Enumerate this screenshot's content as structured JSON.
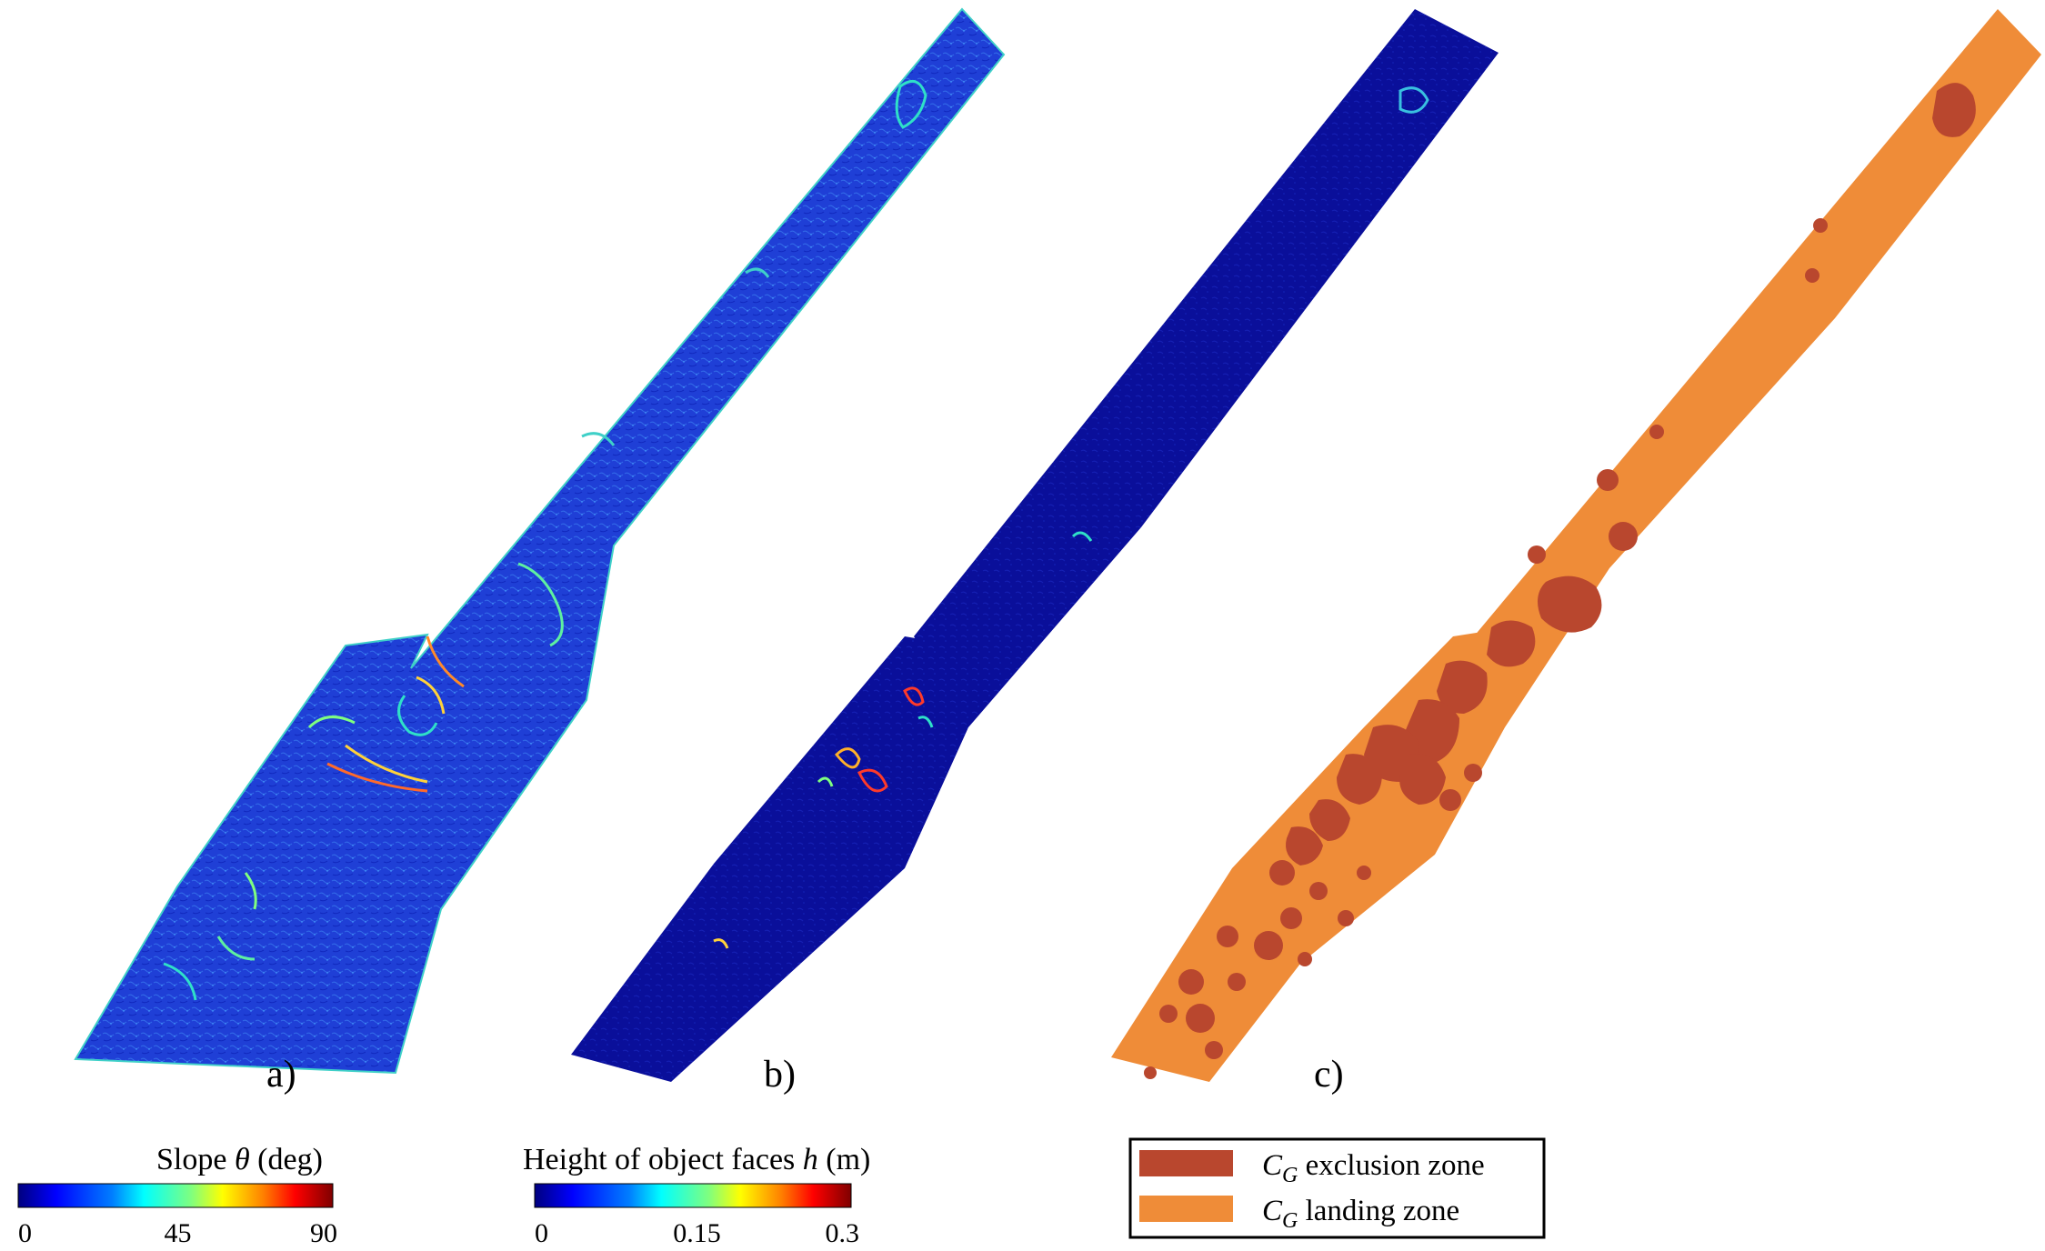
{
  "panels": [
    {
      "id": "a",
      "label": "a)",
      "fill": "#1f3fd6"
    },
    {
      "id": "b",
      "label": "b)",
      "fill": "#0a0f9a"
    },
    {
      "id": "c",
      "label": "c)",
      "fill": "#ef8c38"
    }
  ],
  "colorbar_slope": {
    "title_prefix": "Slope ",
    "title_symbol": "θ",
    "title_suffix": " (deg)",
    "ticks": [
      "0",
      "45",
      "90"
    ],
    "tick_values": [
      0,
      45,
      90
    ],
    "range": [
      0,
      90
    ]
  },
  "colorbar_height": {
    "title_prefix": "Height of object faces ",
    "title_symbol": "h",
    "title_suffix": " (m)",
    "ticks": [
      "0",
      "0.15",
      "0.3"
    ],
    "tick_values": [
      0,
      0.15,
      0.3
    ],
    "range": [
      0,
      0.3
    ]
  },
  "legend": {
    "items": [
      {
        "symbol": "C",
        "subscript": "G",
        "label": " exclusion zone",
        "color": "#b9472e"
      },
      {
        "symbol": "C",
        "subscript": "G",
        "label": " landing zone",
        "color": "#ef8c38"
      }
    ]
  },
  "colors": {
    "jet": [
      "#00007f",
      "#0000ff",
      "#007fff",
      "#00ffff",
      "#7fff7f",
      "#ffff00",
      "#ff7f00",
      "#ff0000",
      "#7f0000"
    ],
    "exclusion": "#b9472e",
    "landing": "#ef8c38"
  }
}
